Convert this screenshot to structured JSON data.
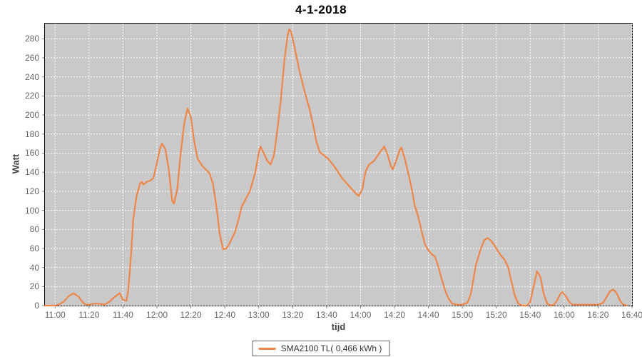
{
  "title": "4-1-2018",
  "legend": {
    "label": "SMA2100 TL( 0,466 kWh )"
  },
  "colors": {
    "page_bg": "#ffffff",
    "plot_bg": "#c9c9c9",
    "gridline": "#ffffff",
    "plot_border": "#000000",
    "line": "#f08548",
    "tick_label": "#666666",
    "axis_title": "#444444",
    "title": "#000000",
    "tick_mark": "#888888",
    "legend_border": "#666666"
  },
  "chart_data": {
    "type": "line",
    "title": "4-1-2018",
    "xlabel": "tijd",
    "ylabel": "Watt",
    "grid": "white dashed gridlines on gray plot background",
    "legend_position": "bottom-center",
    "x_tick_labels": [
      "11:00",
      "11:20",
      "11:40",
      "12:00",
      "12:20",
      "12:40",
      "13:00",
      "13:20",
      "13:40",
      "14:00",
      "14:20",
      "14:40",
      "15:00",
      "15:20",
      "15:40",
      "16:00",
      "16:20",
      "16:40"
    ],
    "y_ticks": [
      0,
      20,
      40,
      60,
      80,
      100,
      120,
      140,
      160,
      180,
      200,
      220,
      240,
      260,
      280
    ],
    "xlim_minutes": [
      654,
      1000
    ],
    "ylim": [
      0,
      296
    ],
    "series": [
      {
        "name": "SMA2100 TL( 0,466 kWh )",
        "color": "#f08548",
        "points": [
          [
            "10:54",
            0
          ],
          [
            "11:00",
            0
          ],
          [
            "11:02",
            1
          ],
          [
            "11:05",
            4
          ],
          [
            "11:08",
            10
          ],
          [
            "11:11",
            13
          ],
          [
            "11:14",
            9
          ],
          [
            "11:16",
            4
          ],
          [
            "11:18",
            1
          ],
          [
            "11:20",
            1
          ],
          [
            "11:23",
            2
          ],
          [
            "11:26",
            2
          ],
          [
            "11:29",
            1
          ],
          [
            "11:32",
            4
          ],
          [
            "11:35",
            9
          ],
          [
            "11:38",
            13
          ],
          [
            "11:40",
            6
          ],
          [
            "11:42",
            5
          ],
          [
            "11:43",
            15
          ],
          [
            "11:44",
            35
          ],
          [
            "11:45",
            60
          ],
          [
            "11:46",
            90
          ],
          [
            "11:48",
            115
          ],
          [
            "11:50",
            128
          ],
          [
            "11:51",
            130
          ],
          [
            "11:52",
            127
          ],
          [
            "11:54",
            130
          ],
          [
            "11:56",
            131
          ],
          [
            "11:58",
            134
          ],
          [
            "12:00",
            150
          ],
          [
            "12:02",
            166
          ],
          [
            "12:03",
            170
          ],
          [
            "12:05",
            164
          ],
          [
            "12:07",
            143
          ],
          [
            "12:09",
            110
          ],
          [
            "12:10",
            107
          ],
          [
            "12:12",
            122
          ],
          [
            "12:14",
            160
          ],
          [
            "12:16",
            190
          ],
          [
            "12:18",
            207
          ],
          [
            "12:20",
            198
          ],
          [
            "12:22",
            172
          ],
          [
            "12:24",
            154
          ],
          [
            "12:27",
            146
          ],
          [
            "12:31",
            139
          ],
          [
            "12:33",
            128
          ],
          [
            "12:35",
            105
          ],
          [
            "12:37",
            75
          ],
          [
            "12:39",
            59
          ],
          [
            "12:41",
            60
          ],
          [
            "12:43",
            66
          ],
          [
            "12:46",
            77
          ],
          [
            "12:48",
            90
          ],
          [
            "12:50",
            104
          ],
          [
            "12:53",
            114
          ],
          [
            "12:55",
            121
          ],
          [
            "12:58",
            140
          ],
          [
            "13:00",
            160
          ],
          [
            "13:01",
            167
          ],
          [
            "13:03",
            160
          ],
          [
            "13:05",
            152
          ],
          [
            "13:07",
            148
          ],
          [
            "13:09",
            158
          ],
          [
            "13:11",
            185
          ],
          [
            "13:13",
            215
          ],
          [
            "13:15",
            255
          ],
          [
            "13:17",
            283
          ],
          [
            "13:18",
            290
          ],
          [
            "13:19",
            288
          ],
          [
            "13:21",
            272
          ],
          [
            "13:24",
            246
          ],
          [
            "13:27",
            225
          ],
          [
            "13:30",
            206
          ],
          [
            "13:32",
            190
          ],
          [
            "13:34",
            172
          ],
          [
            "13:36",
            161
          ],
          [
            "13:39",
            157
          ],
          [
            "13:41",
            154
          ],
          [
            "13:45",
            145
          ],
          [
            "13:49",
            134
          ],
          [
            "13:53",
            126
          ],
          [
            "13:57",
            118
          ],
          [
            "13:59",
            115
          ],
          [
            "14:01",
            122
          ],
          [
            "14:03",
            141
          ],
          [
            "14:05",
            148
          ],
          [
            "14:08",
            152
          ],
          [
            "14:11",
            160
          ],
          [
            "14:14",
            167
          ],
          [
            "14:16",
            158
          ],
          [
            "14:18",
            146
          ],
          [
            "14:19",
            143
          ],
          [
            "14:21",
            152
          ],
          [
            "14:23",
            163
          ],
          [
            "14:24",
            166
          ],
          [
            "14:26",
            155
          ],
          [
            "14:28",
            140
          ],
          [
            "14:30",
            124
          ],
          [
            "14:32",
            105
          ],
          [
            "14:34",
            93
          ],
          [
            "14:36",
            78
          ],
          [
            "14:38",
            64
          ],
          [
            "14:40",
            58
          ],
          [
            "14:42",
            54
          ],
          [
            "14:44",
            51
          ],
          [
            "14:46",
            40
          ],
          [
            "14:48",
            27
          ],
          [
            "14:50",
            15
          ],
          [
            "14:52",
            7
          ],
          [
            "14:54",
            2
          ],
          [
            "14:57",
            1
          ],
          [
            "15:00",
            1
          ],
          [
            "15:03",
            3
          ],
          [
            "15:05",
            12
          ],
          [
            "15:08",
            43
          ],
          [
            "15:11",
            60
          ],
          [
            "15:13",
            69
          ],
          [
            "15:15",
            71
          ],
          [
            "15:17",
            68
          ],
          [
            "15:19",
            63
          ],
          [
            "15:21",
            57
          ],
          [
            "15:23",
            52
          ],
          [
            "15:25",
            48
          ],
          [
            "15:27",
            40
          ],
          [
            "15:29",
            25
          ],
          [
            "15:31",
            10
          ],
          [
            "15:33",
            2
          ],
          [
            "15:35",
            0
          ],
          [
            "15:38",
            0
          ],
          [
            "15:40",
            4
          ],
          [
            "15:42",
            20
          ],
          [
            "15:44",
            36
          ],
          [
            "15:46",
            30
          ],
          [
            "15:48",
            12
          ],
          [
            "15:50",
            2
          ],
          [
            "15:52",
            0
          ],
          [
            "15:54",
            1
          ],
          [
            "15:56",
            6
          ],
          [
            "15:58",
            13
          ],
          [
            "15:59",
            14
          ],
          [
            "16:01",
            10
          ],
          [
            "16:03",
            4
          ],
          [
            "16:05",
            1
          ],
          [
            "16:10",
            1
          ],
          [
            "16:15",
            1
          ],
          [
            "16:20",
            1
          ],
          [
            "16:23",
            3
          ],
          [
            "16:25",
            9
          ],
          [
            "16:27",
            15
          ],
          [
            "16:29",
            17
          ],
          [
            "16:31",
            13
          ],
          [
            "16:33",
            5
          ],
          [
            "16:35",
            1
          ],
          [
            "16:37",
            0
          ]
        ]
      }
    ]
  }
}
